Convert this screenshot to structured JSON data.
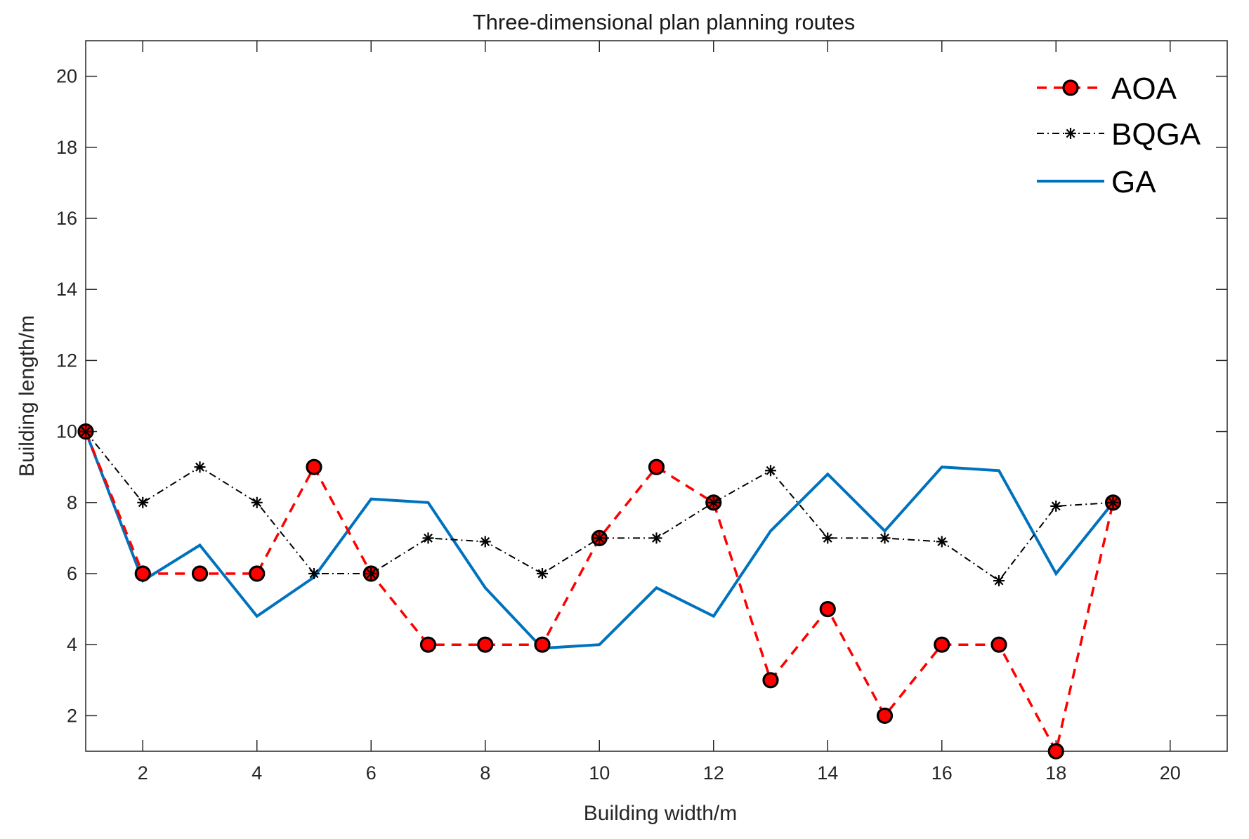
{
  "chart_data": {
    "type": "line",
    "title": "Three-dimensional plan planning routes",
    "xlabel": "Building width/m",
    "ylabel": "Building length/m",
    "xlim": [
      1,
      21
    ],
    "ylim": [
      1,
      21
    ],
    "xticks": [
      2,
      4,
      6,
      8,
      10,
      12,
      14,
      16,
      18,
      20
    ],
    "yticks": [
      2,
      4,
      6,
      8,
      10,
      12,
      14,
      16,
      18,
      20
    ],
    "grid": false,
    "legend_position": "top-right",
    "series": [
      {
        "name": "AOA",
        "color": "#ff0000",
        "marker_fill": "#ff0000",
        "style": "dashed-circle",
        "x": [
          1,
          2,
          3,
          4,
          5,
          6,
          7,
          8,
          9,
          10,
          11,
          12,
          13,
          14,
          15,
          16,
          17,
          18,
          19
        ],
        "y": [
          10,
          6,
          6,
          6,
          9,
          6,
          4,
          4,
          4,
          7,
          9,
          8,
          3,
          5,
          2,
          4,
          4,
          1,
          8
        ]
      },
      {
        "name": "BQGA",
        "color": "#000000",
        "style": "dashdot-star",
        "x": [
          1,
          2,
          3,
          4,
          5,
          6,
          7,
          8,
          9,
          10,
          11,
          12,
          13,
          14,
          15,
          16,
          17,
          18,
          19
        ],
        "y": [
          10,
          8,
          9,
          8,
          6,
          6,
          7,
          6.9,
          6,
          7,
          7,
          8,
          8.9,
          7,
          7,
          6.9,
          5.8,
          7.9,
          8
        ]
      },
      {
        "name": "GA",
        "color": "#0072bd",
        "style": "solid",
        "x": [
          1,
          2,
          3,
          4,
          5,
          6,
          7,
          8,
          9,
          10,
          11,
          12,
          13,
          14,
          15,
          16,
          17,
          18,
          19
        ],
        "y": [
          10,
          5.8,
          6.8,
          4.8,
          5.9,
          8.1,
          8,
          5.6,
          3.9,
          4,
          5.6,
          4.8,
          7.2,
          8.8,
          7.2,
          9,
          8.9,
          6,
          8
        ]
      }
    ]
  }
}
